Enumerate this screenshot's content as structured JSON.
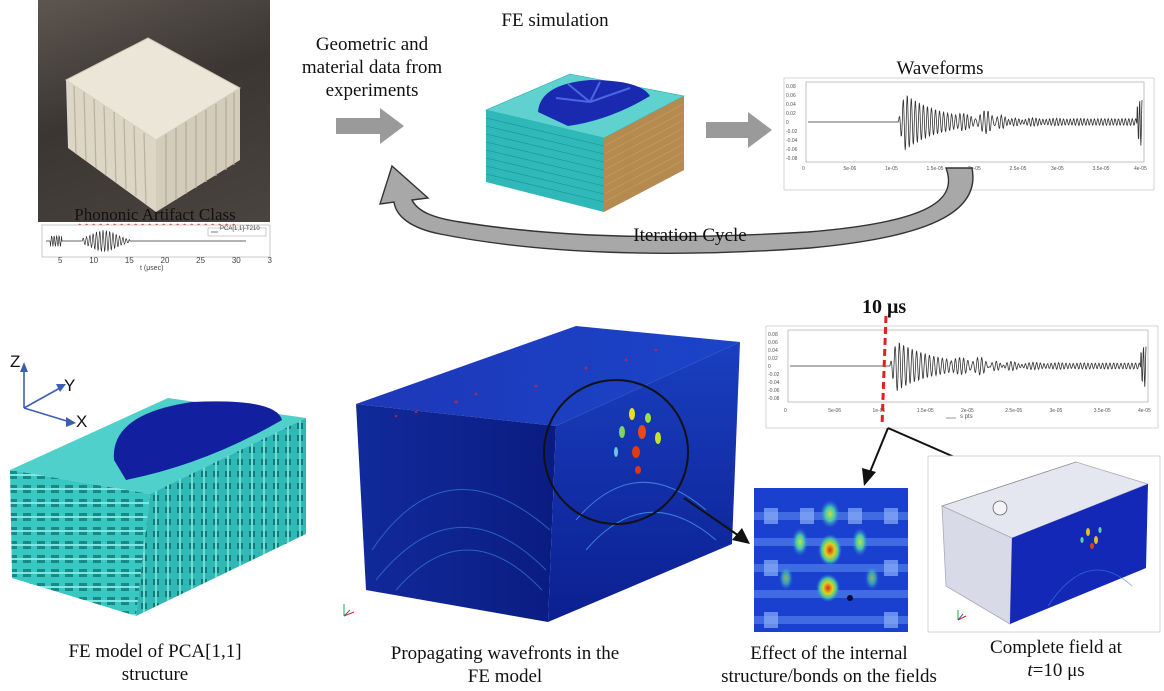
{
  "top": {
    "geometric_label": "Geometric and material data from experiments",
    "fe_simulation_title": "FE simulation",
    "waveforms_title": "Waveforms",
    "iteration_label": "Iteration Cycle",
    "pca_label": "Phononic Artifact Class",
    "photo_legend": "PCA[1,1]-T210",
    "photo_xaxis_label": "t (μsec)",
    "photo_xticks": [
      "5",
      "10",
      "15",
      "20",
      "25",
      "30",
      "3"
    ],
    "waveform_yticks": [
      "0.08",
      "0.06",
      "0.04",
      "0.02",
      "0",
      "-0.02",
      "-0.04",
      "-0.06",
      "-0.08"
    ],
    "waveform_xticks": [
      "0",
      "5e-06",
      "1e-05",
      "1.5e-05",
      "2e-05",
      "2.5e-05",
      "3e-05",
      "3.5e-05",
      "4e-05"
    ],
    "waveform_xlabel": "Time"
  },
  "bottom": {
    "axis_z": "Z",
    "axis_y": "Y",
    "axis_x": "X",
    "fe_model_label": "FE model of PCA[1,1] structure",
    "propagating_label": "Propagating wavefronts in the FE model",
    "time_marker": "10 μs",
    "waveform_legend": "s pts",
    "effect_label": "Effect of the internal structure/bonds on the fields",
    "complete_label_prefix": "Complete field at",
    "complete_label_t": "t",
    "complete_label_suffix": "=10 μs"
  },
  "colors": {
    "arrow_gray": "#9a9a9a",
    "cyan_model": "#3cc6c3",
    "deep_blue": "#1525a8",
    "marker_red": "#e02020"
  }
}
